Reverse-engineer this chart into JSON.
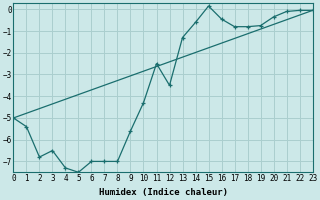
{
  "xlabel": "Humidex (Indice chaleur)",
  "background_color": "#cce8e8",
  "grid_color": "#aacece",
  "line_color": "#1a6e6e",
  "xlim": [
    0,
    23
  ],
  "ylim": [
    -7.5,
    0.3
  ],
  "yticks": [
    0,
    -1,
    -2,
    -3,
    -4,
    -5,
    -6,
    -7
  ],
  "xticks": [
    0,
    1,
    2,
    3,
    4,
    5,
    6,
    7,
    8,
    9,
    10,
    11,
    12,
    13,
    14,
    15,
    16,
    17,
    18,
    19,
    20,
    21,
    22,
    23
  ],
  "line1_x": [
    0,
    1,
    2,
    3,
    4,
    5,
    6,
    7,
    8,
    9,
    10,
    11,
    12,
    13,
    14,
    15,
    16,
    17,
    18,
    19,
    20,
    21,
    22,
    23
  ],
  "line1_y": [
    -5.0,
    -5.4,
    -6.8,
    -6.5,
    -7.3,
    -7.5,
    -7.0,
    -7.0,
    -7.0,
    -5.6,
    -4.3,
    -2.5,
    -3.5,
    -1.3,
    -0.6,
    0.15,
    -0.45,
    -0.8,
    -0.8,
    -0.75,
    -0.35,
    -0.1,
    -0.05,
    -0.05
  ],
  "line2_x": [
    0,
    23
  ],
  "line2_y": [
    -5.0,
    -0.05
  ],
  "figsize": [
    3.2,
    2.0
  ],
  "dpi": 100
}
